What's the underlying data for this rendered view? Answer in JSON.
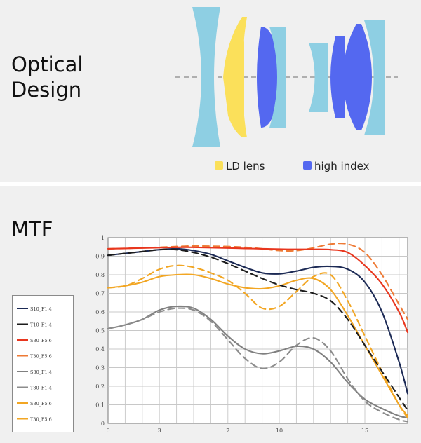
{
  "optical_design": {
    "title_line1": "Optical",
    "title_line2": "Design",
    "legend": [
      {
        "label": "LD lens",
        "color": "#fbe05a"
      },
      {
        "label": "high index",
        "color": "#5468f0"
      }
    ],
    "colors": {
      "plain_lens": "#8ecfe3",
      "ld_lens": "#fbe05a",
      "high_index": "#5468f0"
    }
  },
  "mtf": {
    "title": "MTF"
  },
  "chart_data": {
    "type": "line",
    "title": "MTF",
    "x_ticks": [
      "0",
      "3",
      "7",
      "10",
      "15"
    ],
    "y_ticks": [
      "0",
      "0.1",
      "0.2",
      "0.3",
      "0.4",
      "0.5",
      "0.6",
      "0.7",
      "0.8",
      "0.9",
      "1"
    ],
    "xlim": [
      0,
      17.5
    ],
    "ylim": [
      0,
      1
    ],
    "grid": true,
    "legend_position": "left",
    "series": [
      {
        "name": "S10_F1.4",
        "color": "#1c2a55",
        "dash": false,
        "x": [
          0,
          1,
          2,
          3,
          4,
          5,
          6,
          7,
          8,
          9,
          10,
          11,
          12,
          13,
          14,
          15,
          16,
          17,
          17.5
        ],
        "y": [
          0.905,
          0.915,
          0.925,
          0.935,
          0.94,
          0.93,
          0.91,
          0.875,
          0.84,
          0.81,
          0.805,
          0.82,
          0.84,
          0.845,
          0.83,
          0.76,
          0.6,
          0.33,
          0.16
        ]
      },
      {
        "name": "T10_F1.4",
        "color": "#1c1c1c",
        "dash": true,
        "x": [
          0,
          1,
          2,
          3,
          4,
          5,
          6,
          7,
          8,
          9,
          10,
          11,
          12,
          13,
          14,
          15,
          16,
          17,
          17.5
        ],
        "y": [
          0.905,
          0.915,
          0.925,
          0.935,
          0.935,
          0.92,
          0.895,
          0.86,
          0.82,
          0.78,
          0.745,
          0.72,
          0.7,
          0.66,
          0.56,
          0.42,
          0.28,
          0.14,
          0.07
        ]
      },
      {
        "name": "S30_F5.6",
        "color": "#e8361e",
        "dash": false,
        "x": [
          0,
          1,
          2,
          3,
          4,
          5,
          6,
          7,
          8,
          9,
          10,
          11,
          12,
          13,
          14,
          15,
          16,
          17,
          17.5
        ],
        "y": [
          0.94,
          0.942,
          0.944,
          0.946,
          0.948,
          0.948,
          0.946,
          0.944,
          0.942,
          0.94,
          0.938,
          0.937,
          0.937,
          0.935,
          0.92,
          0.85,
          0.75,
          0.6,
          0.49
        ]
      },
      {
        "name": "T30_F5.6",
        "color": "#ee7a35",
        "dash": true,
        "x": [
          0,
          1,
          2,
          3,
          4,
          5,
          6,
          7,
          8,
          9,
          10,
          11,
          12,
          13,
          14,
          15,
          16,
          17,
          17.5
        ],
        "y": [
          0.94,
          0.942,
          0.945,
          0.948,
          0.952,
          0.955,
          0.954,
          0.952,
          0.948,
          0.94,
          0.93,
          0.93,
          0.945,
          0.965,
          0.965,
          0.92,
          0.8,
          0.64,
          0.56
        ]
      },
      {
        "name": "S30_F1.4",
        "color": "#808080",
        "dash": false,
        "x": [
          0,
          1,
          2,
          3,
          4,
          5,
          6,
          7,
          8,
          9,
          10,
          11,
          12,
          13,
          14,
          15,
          16,
          17,
          17.5
        ],
        "y": [
          0.51,
          0.53,
          0.56,
          0.61,
          0.63,
          0.62,
          0.56,
          0.47,
          0.4,
          0.375,
          0.39,
          0.415,
          0.4,
          0.33,
          0.22,
          0.13,
          0.08,
          0.04,
          0.03
        ]
      },
      {
        "name": "T30_F1.4",
        "color": "#8c8c8c",
        "dash": true,
        "x": [
          0,
          1,
          2,
          3,
          4,
          5,
          6,
          7,
          8,
          9,
          10,
          11,
          12,
          13,
          14,
          15,
          16,
          17,
          17.5
        ],
        "y": [
          0.51,
          0.53,
          0.56,
          0.6,
          0.62,
          0.61,
          0.55,
          0.45,
          0.35,
          0.295,
          0.33,
          0.42,
          0.46,
          0.39,
          0.24,
          0.12,
          0.06,
          0.02,
          0.01
        ]
      },
      {
        "name": "S30_F5.6",
        "color": "#f2a623",
        "dash": false,
        "x": [
          0,
          1,
          2,
          3,
          4,
          5,
          6,
          7,
          8,
          9,
          10,
          11,
          12,
          13,
          14,
          15,
          16,
          17,
          17.5
        ],
        "y": [
          0.73,
          0.74,
          0.76,
          0.79,
          0.8,
          0.8,
          0.78,
          0.75,
          0.73,
          0.725,
          0.74,
          0.77,
          0.78,
          0.72,
          0.58,
          0.42,
          0.26,
          0.1,
          0.04
        ]
      },
      {
        "name": "T30_F5.6",
        "color": "#f2a623",
        "dash": true,
        "x": [
          0,
          1,
          2,
          3,
          4,
          5,
          6,
          7,
          8,
          9,
          10,
          11,
          12,
          13,
          14,
          15,
          16,
          17,
          17.5
        ],
        "y": [
          0.73,
          0.74,
          0.78,
          0.83,
          0.85,
          0.84,
          0.81,
          0.77,
          0.7,
          0.62,
          0.63,
          0.71,
          0.79,
          0.8,
          0.66,
          0.47,
          0.28,
          0.1,
          0.03
        ]
      }
    ]
  }
}
